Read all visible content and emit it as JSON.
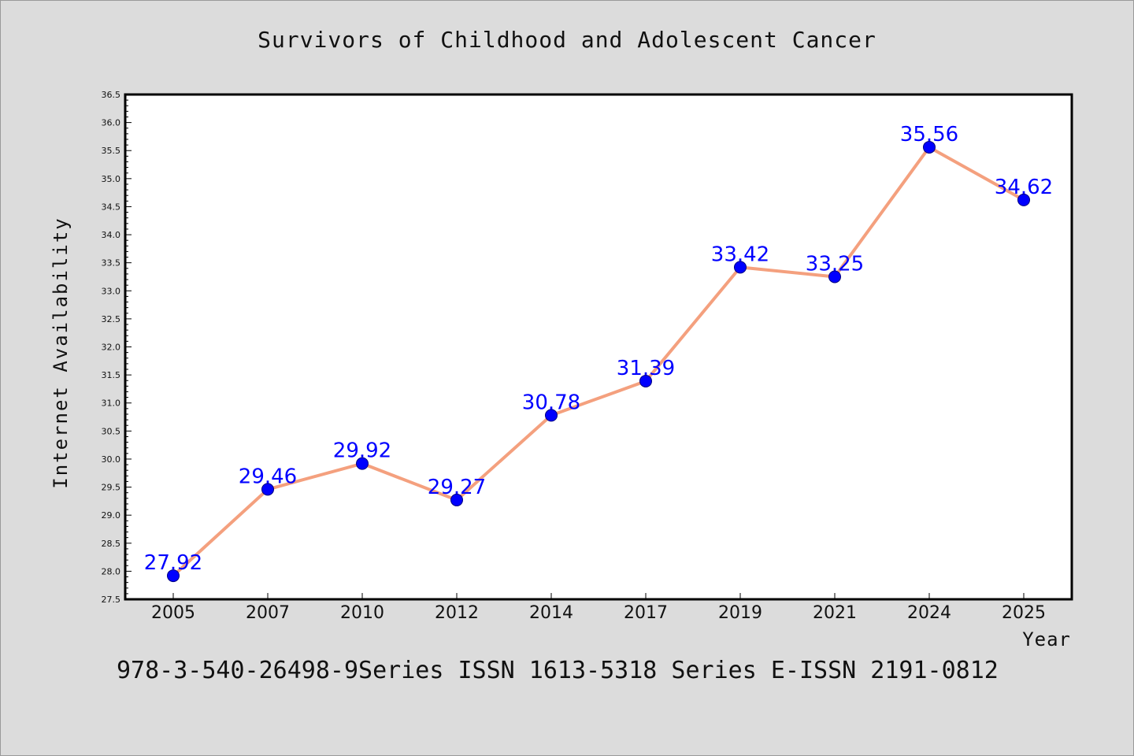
{
  "chart_data": {
    "type": "line",
    "title": "Survivors of Childhood and Adolescent Cancer",
    "xlabel": "Year",
    "ylabel": "Internet Availability",
    "categories": [
      "2005",
      "2007",
      "2010",
      "2012",
      "2014",
      "2017",
      "2019",
      "2021",
      "2024",
      "2025"
    ],
    "series": [
      {
        "values": [
          27.92,
          29.46,
          29.92,
          29.27,
          30.78,
          31.39,
          33.42,
          33.25,
          35.56,
          34.62
        ]
      }
    ],
    "data_labels": [
      "27.92",
      "29.46",
      "29.92",
      "29.27",
      "30.78",
      "31.39",
      "33.42",
      "33.25",
      "35.56",
      "34.62"
    ],
    "ylim": [
      27.5,
      36.5
    ],
    "yticks": [
      "27.5",
      "28.0",
      "28.5",
      "29.0",
      "29.5",
      "30.0",
      "30.5",
      "31.0",
      "31.5",
      "32.0",
      "32.5",
      "33.0",
      "33.5",
      "34.0",
      "34.5",
      "35.0",
      "35.5",
      "36.0",
      "36.5"
    ],
    "grid": false,
    "legend": "none",
    "colors": {
      "line": "#f4a07e",
      "marker": "#0000ff",
      "marker_edge": "#000080",
      "data_label": "#0000ff",
      "background": "#dcdcdc",
      "plot_background": "#ffffff"
    }
  },
  "footer": {
    "text": "978-3-540-26498-9Series ISSN 1613-5318 Series E-ISSN 2191-0812"
  }
}
